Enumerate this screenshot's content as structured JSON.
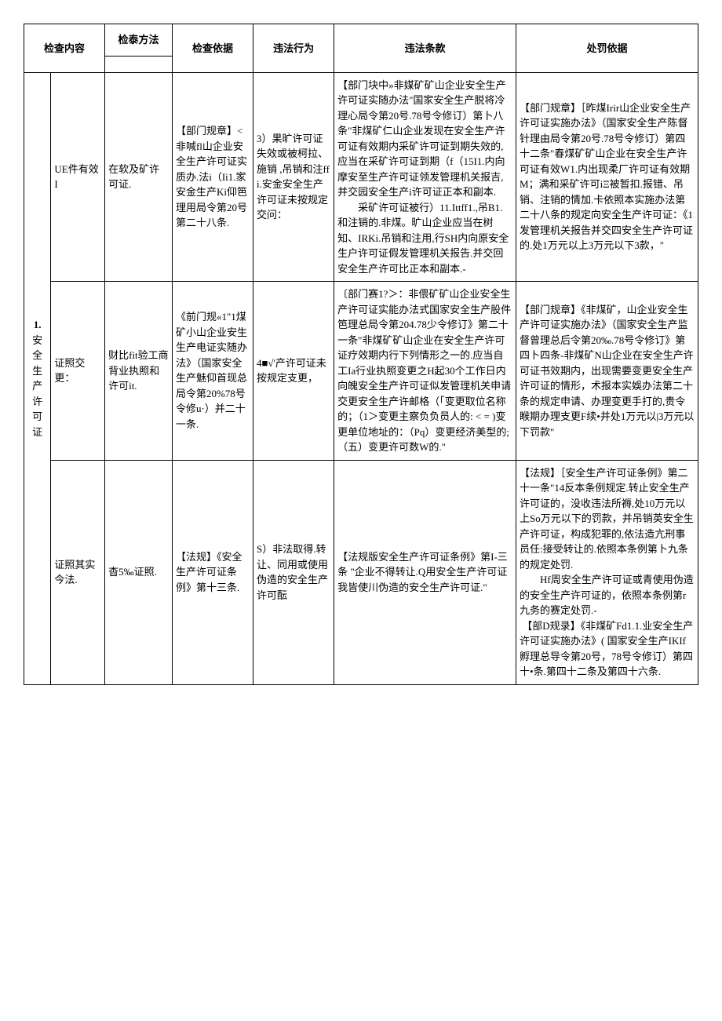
{
  "table": {
    "columns": {
      "col1_top": "检查内容",
      "col2_top": "检泰方法",
      "col3": "检查依据",
      "col4": "违法行为",
      "col5": "违法条款",
      "col6": "处罚依据"
    },
    "rowspan_label": {
      "number": "1.",
      "text": "安全生产许可证"
    },
    "rows": [
      {
        "c1": "UE件有效I",
        "c2": "在软及矿许可证.",
        "c3": "【部门规章】<非喊fl山企业安全生产许可证实质办.法i（Ii1.家安金生产Ki仰笆理用局令第20号第二十八条.",
        "c4": "3）果旷许可证失效或被柯拉、施销 ,吊销和注ffi.安金安全生产许可证未按规定交问：",
        "c5": "【部门块中»非媒矿矿山企业安全生产许可证实随办法\"国家安全生产脱将冷理心局令第20号.78号令修订）第卜八条\"非煤矿仁山企业发现在安全生产许可证有效期内采矿许可证到期失效的,应当在采矿许可证到期（f（15I1.内向摩安至生产许可证领发管理机关报吉,并交园安全生产i许可证正本和副本.\n　　采矿许可证被行）11.Ittff1.,吊B1.和注销的.非煤。旷山企业应当在树知、IRKi.吊销和注用,行SH内向原安全生户许可证假发管理机关报告.并交回安全生产许可比正本和副本.-",
        "c6": "【部门规章】［昨煤Irir山企业安全生产许可证实施办法》（国家安全生产陈督针理由局令第20号.78号令修订）第四十二条\"春煤矿矿山企业在安全生产许可证有效W1.内出现柔厂许可证有效期M；满和采矿许可iΞ被暂扣.报错、吊销、注销的情加.卡依照本实施办法第二十八条的规定向安全生产许可证：《1发管理机关报告并交四安全生产许可证的.处1万元以上3万元以下3款，\""
      },
      {
        "c1": "证照交更：",
        "c2": "财比fit验工商背业执照和许可it.",
        "c3": "《前门规«1\"1煤矿小山企业安生生产电证实随办法》（国家安全生产魅仰首现总局令第20%78号令修u·）并二十一条.",
        "c4": "4■√'产许可证未按规定支更，",
        "c5": "〔部门赛1?＞：非偎矿矿山企业安全生产许可证实能办法式国家安全生产股件笆理总局令第204.78少令修订》第二十一条\"非煤矿矿山企业在安全生产许可证疗效期内行下列情形之一的.应当自工Ia行业执照变更之H起30个工作日内向魄安全生产许可证似发管理机关申请交更安全生产许邮格（「变更取位名称的；（1＞变更主察负负员人的: < = )变更单位地址的：（Pq）变更经济美型的;（五）变更许可数W的.\"",
        "c6": "【部门规章】《非煤矿，山企业安全生产许可证实施办法》（国家安全生产监督曾理总后令第20‰.78号令修订》第四卜四条-非煤矿N山企业在安全生产许可证书效期内，出现需要变更安全生产许可证的情形，术报本实娛办法第二十条的规定申请、办理变更手打的,贵令睺期办理支更F续•并处1万元以|3万元以下罚款\""
      },
      {
        "c1": "证照其实今法.",
        "c2": "杳5‰证照.",
        "c3": "【法规】《安全生产许可证条例》第十三条.",
        "c4": "S）非法取得.转让、同用或使用伪造的安全生产许可酝",
        "c5": "【法规版安全生产许可证条例》第I-三条 \"企业不得转让.Q用安全生产许可证我皆使川伪造的安仝生产许可证.\"",
        "c6": "【法规】［安全生产许可证条例》第二十一条\"14反本条例规定.转止安全生产许可证的，没收违法所褥,处10万元以上So万元以下的罚款，并吊销英安全生产许可证，构成犯罪的,依法造亢刑事员任:接受转让的.依照本条例第卜九条的规定处罚.\n　　Hf周安全生产许可证或青使用伪造的安全生产许可证的，依照本条例第r九务的赛定处罚.-\n 【部D规录】《非煤矿Fd1.1.业安全生产许可证实施办法》( 国家安全生产IKIf孵理总导令第20号，78号令修订）第四十•条.第四十二条及第四十六条."
      }
    ]
  }
}
